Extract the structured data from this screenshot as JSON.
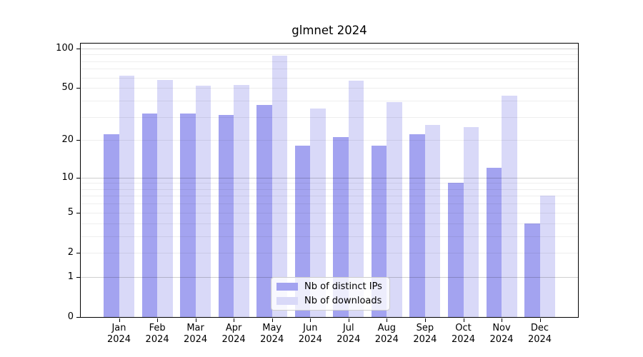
{
  "title": "glmnet 2024",
  "chart_data": {
    "type": "bar",
    "title": "glmnet 2024",
    "categories": [
      {
        "month": "Jan",
        "year": "2024"
      },
      {
        "month": "Feb",
        "year": "2024"
      },
      {
        "month": "Mar",
        "year": "2024"
      },
      {
        "month": "Apr",
        "year": "2024"
      },
      {
        "month": "May",
        "year": "2024"
      },
      {
        "month": "Jun",
        "year": "2024"
      },
      {
        "month": "Jul",
        "year": "2024"
      },
      {
        "month": "Aug",
        "year": "2024"
      },
      {
        "month": "Sep",
        "year": "2024"
      },
      {
        "month": "Oct",
        "year": "2024"
      },
      {
        "month": "Nov",
        "year": "2024"
      },
      {
        "month": "Dec",
        "year": "2024"
      }
    ],
    "series": [
      {
        "name": "Nb of distinct IPs",
        "color": "#a3a3f0",
        "values": [
          22,
          32,
          32,
          31,
          37,
          18,
          21,
          18,
          22,
          9,
          12,
          4
        ]
      },
      {
        "name": "Nb of downloads",
        "color": "#d9d9f8",
        "values": [
          62,
          58,
          52,
          53,
          88,
          35,
          57,
          39,
          26,
          25,
          44,
          7
        ]
      }
    ],
    "xlabel": "",
    "ylabel": "",
    "yscale": "log1p",
    "ylim": [
      0,
      110
    ],
    "yticks": [
      "0",
      "1",
      "2",
      "5",
      "10",
      "20",
      "50",
      "100"
    ],
    "grid_major": [
      1,
      10,
      100
    ],
    "grid_minor": [
      2,
      3,
      4,
      5,
      6,
      7,
      8,
      9,
      20,
      30,
      40,
      50,
      60,
      70,
      80,
      90
    ],
    "grid": "horizontal",
    "legend_position": "lower center"
  }
}
